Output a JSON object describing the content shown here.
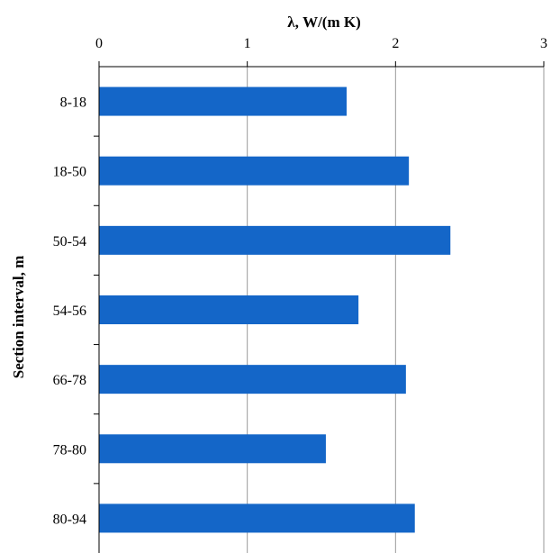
{
  "chart_data": {
    "type": "bar",
    "orientation": "horizontal",
    "categories": [
      "8-18",
      "18-50",
      "50-54",
      "54-56",
      "66-78",
      "78-80",
      "80-94"
    ],
    "values": [
      1.67,
      2.09,
      2.37,
      1.75,
      2.07,
      1.53,
      2.13
    ],
    "xlabel": "λ, W/(m K)",
    "ylabel": "Section interval, m",
    "xlim": [
      0,
      3
    ],
    "xticks": [
      0,
      1,
      2,
      3
    ],
    "x_axis_position": "top",
    "grid": "vertical",
    "bar_color": "#1466C8"
  }
}
